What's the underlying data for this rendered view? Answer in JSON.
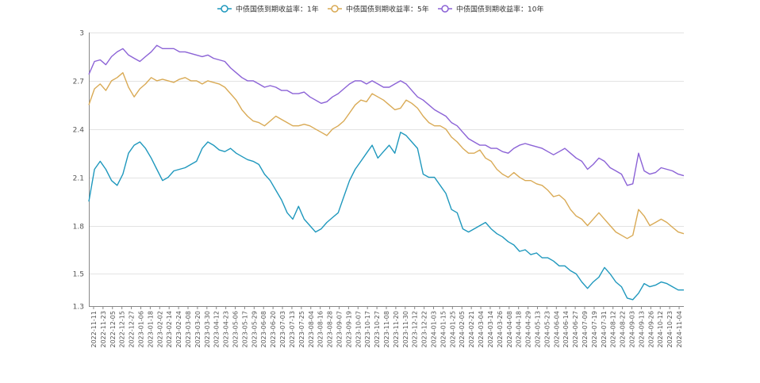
{
  "chart_data": {
    "type": "line",
    "title": "",
    "xlabel": "",
    "ylabel": "",
    "ylim": [
      1.3,
      3.0
    ],
    "y_ticks": [
      "1.3",
      "1.5",
      "1.8",
      "2.1",
      "2.4",
      "2.7",
      "3"
    ],
    "y_tick_values": [
      1.3,
      1.5,
      1.8,
      2.1,
      2.4,
      2.7,
      3.0
    ],
    "grid": true,
    "legend_position": "top-center",
    "x_tick_labels": [
      "2022-11-11",
      "2022-11-23",
      "2022-12-05",
      "2022-12-15",
      "2022-12-27",
      "2023-01-06",
      "2023-01-18",
      "2023-02-02",
      "2023-02-14",
      "2023-02-24",
      "2023-03-08",
      "2023-03-20",
      "2023-03-30",
      "2023-04-12",
      "2023-04-23",
      "2023-05-06",
      "2023-05-17",
      "2023-05-29",
      "2023-06-08",
      "2023-06-20",
      "2023-07-03",
      "2023-07-13",
      "2023-07-25",
      "2023-08-04",
      "2023-08-16",
      "2023-08-28",
      "2023-09-07",
      "2023-09-19",
      "2023-10-07",
      "2023-10-17",
      "2023-10-27",
      "2023-11-08",
      "2023-11-20",
      "2023-11-30",
      "2023-12-12",
      "2023-12-22",
      "2024-01-03",
      "2024-01-15",
      "2024-01-25",
      "2024-02-05",
      "2024-02-21",
      "2024-03-04",
      "2024-03-14",
      "2024-03-26",
      "2024-04-08",
      "2024-04-18",
      "2024-04-29",
      "2024-05-13",
      "2024-05-23",
      "2024-06-04",
      "2024-06-14",
      "2024-06-27",
      "2024-07-09",
      "2024-07-19",
      "2024-07-31",
      "2024-08-12",
      "2024-08-22",
      "2024-09-03",
      "2024-09-13",
      "2024-09-26",
      "2024-10-12",
      "2024-10-23",
      "2024-11-04"
    ],
    "series": [
      {
        "name": "中债国债到期收益率：1年",
        "color": "#1f98bd",
        "values": [
          1.95,
          2.15,
          2.2,
          2.15,
          2.08,
          2.05,
          2.12,
          2.25,
          2.3,
          2.32,
          2.28,
          2.22,
          2.15,
          2.08,
          2.1,
          2.14,
          2.15,
          2.16,
          2.18,
          2.2,
          2.28,
          2.32,
          2.3,
          2.27,
          2.26,
          2.28,
          2.25,
          2.23,
          2.21,
          2.2,
          2.18,
          2.12,
          2.08,
          2.02,
          1.96,
          1.88,
          1.84,
          1.92,
          1.84,
          1.8,
          1.76,
          1.78,
          1.82,
          1.85,
          1.88,
          1.98,
          2.08,
          2.15,
          2.2,
          2.25,
          2.3,
          2.22,
          2.26,
          2.3,
          2.25,
          2.38,
          2.36,
          2.32,
          2.28,
          2.12,
          2.1,
          2.1,
          2.05,
          2.0,
          1.9,
          1.88,
          1.78,
          1.76,
          1.78,
          1.8,
          1.82,
          1.78,
          1.75,
          1.73,
          1.7,
          1.68,
          1.64,
          1.65,
          1.62,
          1.63,
          1.6,
          1.6,
          1.58,
          1.55,
          1.55,
          1.52,
          1.5,
          1.45,
          1.41,
          1.45,
          1.48,
          1.54,
          1.5,
          1.45,
          1.42,
          1.35,
          1.34,
          1.38,
          1.44,
          1.42,
          1.43,
          1.45,
          1.44,
          1.42,
          1.4,
          1.4
        ]
      },
      {
        "name": "中债国债到期收益率：5年",
        "color": "#d9aa55",
        "values": [
          2.55,
          2.65,
          2.68,
          2.64,
          2.7,
          2.72,
          2.75,
          2.66,
          2.6,
          2.65,
          2.68,
          2.72,
          2.7,
          2.71,
          2.7,
          2.69,
          2.71,
          2.72,
          2.7,
          2.7,
          2.68,
          2.7,
          2.69,
          2.68,
          2.66,
          2.62,
          2.58,
          2.52,
          2.48,
          2.45,
          2.44,
          2.42,
          2.45,
          2.48,
          2.46,
          2.44,
          2.42,
          2.42,
          2.43,
          2.42,
          2.4,
          2.38,
          2.36,
          2.4,
          2.42,
          2.45,
          2.5,
          2.55,
          2.58,
          2.57,
          2.62,
          2.6,
          2.58,
          2.55,
          2.52,
          2.53,
          2.58,
          2.56,
          2.53,
          2.48,
          2.44,
          2.42,
          2.42,
          2.4,
          2.35,
          2.32,
          2.28,
          2.25,
          2.25,
          2.27,
          2.22,
          2.2,
          2.15,
          2.12,
          2.1,
          2.13,
          2.1,
          2.08,
          2.08,
          2.06,
          2.05,
          2.02,
          1.98,
          1.99,
          1.96,
          1.9,
          1.86,
          1.84,
          1.8,
          1.84,
          1.88,
          1.84,
          1.8,
          1.76,
          1.74,
          1.72,
          1.74,
          1.9,
          1.86,
          1.8,
          1.82,
          1.84,
          1.82,
          1.79,
          1.76,
          1.75
        ]
      },
      {
        "name": "中债国债到期收益率：10年",
        "color": "#8b62d6",
        "values": [
          2.74,
          2.82,
          2.83,
          2.8,
          2.85,
          2.88,
          2.9,
          2.86,
          2.84,
          2.82,
          2.85,
          2.88,
          2.92,
          2.9,
          2.9,
          2.9,
          2.88,
          2.88,
          2.87,
          2.86,
          2.85,
          2.86,
          2.84,
          2.83,
          2.82,
          2.78,
          2.75,
          2.72,
          2.7,
          2.7,
          2.68,
          2.66,
          2.67,
          2.66,
          2.64,
          2.64,
          2.62,
          2.62,
          2.63,
          2.6,
          2.58,
          2.56,
          2.57,
          2.6,
          2.62,
          2.65,
          2.68,
          2.7,
          2.7,
          2.68,
          2.7,
          2.68,
          2.66,
          2.66,
          2.68,
          2.7,
          2.68,
          2.64,
          2.6,
          2.58,
          2.55,
          2.52,
          2.5,
          2.48,
          2.44,
          2.42,
          2.38,
          2.34,
          2.32,
          2.3,
          2.3,
          2.28,
          2.28,
          2.26,
          2.25,
          2.28,
          2.3,
          2.31,
          2.3,
          2.29,
          2.28,
          2.26,
          2.24,
          2.26,
          2.28,
          2.25,
          2.22,
          2.2,
          2.15,
          2.18,
          2.22,
          2.2,
          2.16,
          2.14,
          2.12,
          2.05,
          2.06,
          2.25,
          2.14,
          2.12,
          2.13,
          2.16,
          2.15,
          2.14,
          2.12,
          2.11
        ]
      }
    ]
  }
}
